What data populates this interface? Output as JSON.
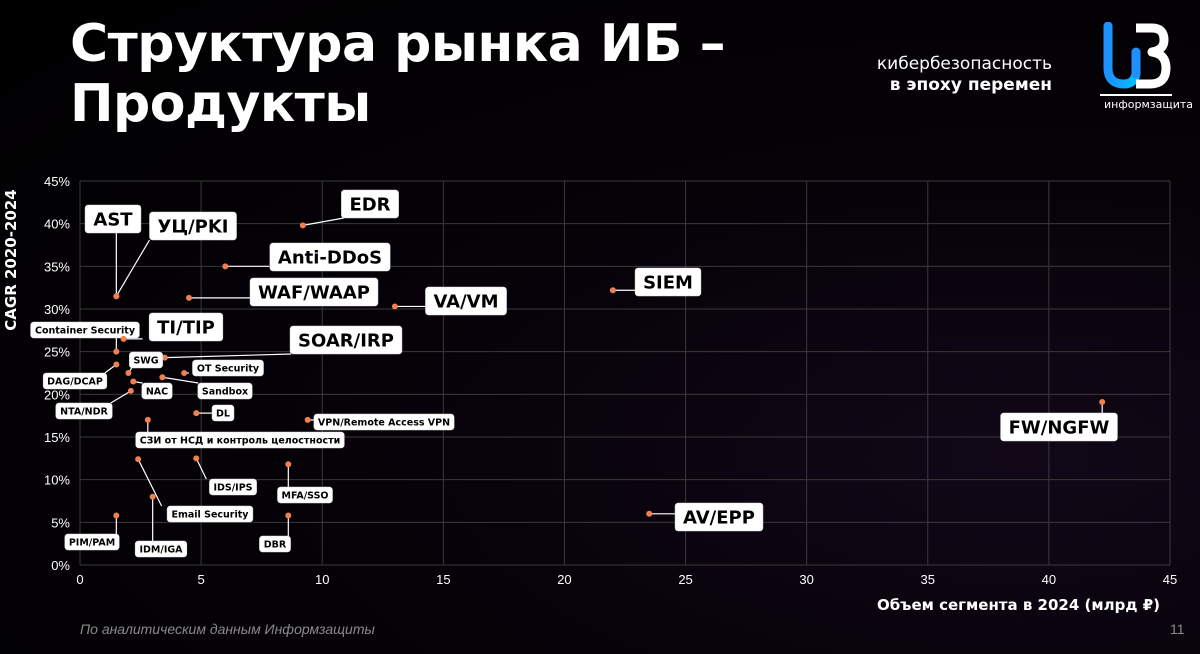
{
  "slide": {
    "title": "Структура рынка ИБ –\nПродукты",
    "tagline_line1": "кибербезопасность",
    "tagline_line2": "в эпоху перемен",
    "logo_text": "информзащита",
    "footnote": "По аналитическим данным Информзащиты",
    "page_number": "11"
  },
  "colors": {
    "point": "#f08050",
    "grid": "#3a3a3a",
    "label_bg": "#ffffff"
  },
  "chart_data": {
    "type": "scatter",
    "title": "",
    "xlabel": "Объем сегмента в 2024 (млрд ₽)",
    "ylabel": "CAGR 2020-2024",
    "xlim": [
      0,
      45
    ],
    "ylim": [
      0,
      45
    ],
    "xticks": [
      "0",
      "5",
      "10",
      "15",
      "20",
      "25",
      "30",
      "35",
      "40",
      "45"
    ],
    "yticks": [
      "0%",
      "5%",
      "10%",
      "15%",
      "20%",
      "25%",
      "30%",
      "35%",
      "40%",
      "45%"
    ],
    "grid": true,
    "points": [
      {
        "name": "EDR",
        "x": 9.2,
        "y": 39.8
      },
      {
        "name": "AST",
        "x": 1.5,
        "y": 31.5
      },
      {
        "name": "УЦ/PKI",
        "x": 1.5,
        "y": 31.5
      },
      {
        "name": "Anti-DDoS",
        "x": 6.0,
        "y": 35.0
      },
      {
        "name": "WAF/WAAP",
        "x": 4.5,
        "y": 31.3
      },
      {
        "name": "VA/VM",
        "x": 13.0,
        "y": 30.3
      },
      {
        "name": "SIEM",
        "x": 22.0,
        "y": 32.2
      },
      {
        "name": "Container Security",
        "x": 1.5,
        "y": 25.0
      },
      {
        "name": "TI/TIP",
        "x": 1.8,
        "y": 26.5
      },
      {
        "name": "SOAR/IRP",
        "x": 3.5,
        "y": 24.3
      },
      {
        "name": "SWG",
        "x": 2.0,
        "y": 22.5
      },
      {
        "name": "DAG/DCAP",
        "x": 1.5,
        "y": 23.5
      },
      {
        "name": "OT Security",
        "x": 4.3,
        "y": 22.5
      },
      {
        "name": "NAC",
        "x": 2.2,
        "y": 21.5
      },
      {
        "name": "Sandbox",
        "x": 3.4,
        "y": 22.0
      },
      {
        "name": "NTA/NDR",
        "x": 2.1,
        "y": 20.4
      },
      {
        "name": "DL",
        "x": 4.8,
        "y": 17.8
      },
      {
        "name": "VPN/Remote Access VPN",
        "x": 9.4,
        "y": 17.0
      },
      {
        "name": "СЗИ от НСД и контроль целостности",
        "x": 2.8,
        "y": 17.0
      },
      {
        "name": "FW/NGFW",
        "x": 42.2,
        "y": 19.1
      },
      {
        "name": "IDS/IPS",
        "x": 4.8,
        "y": 12.5
      },
      {
        "name": "MFA/SSO",
        "x": 8.6,
        "y": 11.8
      },
      {
        "name": "Email Security",
        "x": 2.4,
        "y": 12.4
      },
      {
        "name": "AV/EPP",
        "x": 23.5,
        "y": 6.0
      },
      {
        "name": "IDM/IGA",
        "x": 3.0,
        "y": 8.0
      },
      {
        "name": "PIM/PAM",
        "x": 1.5,
        "y": 5.8
      },
      {
        "name": "DBR",
        "x": 8.6,
        "y": 5.8
      }
    ]
  }
}
